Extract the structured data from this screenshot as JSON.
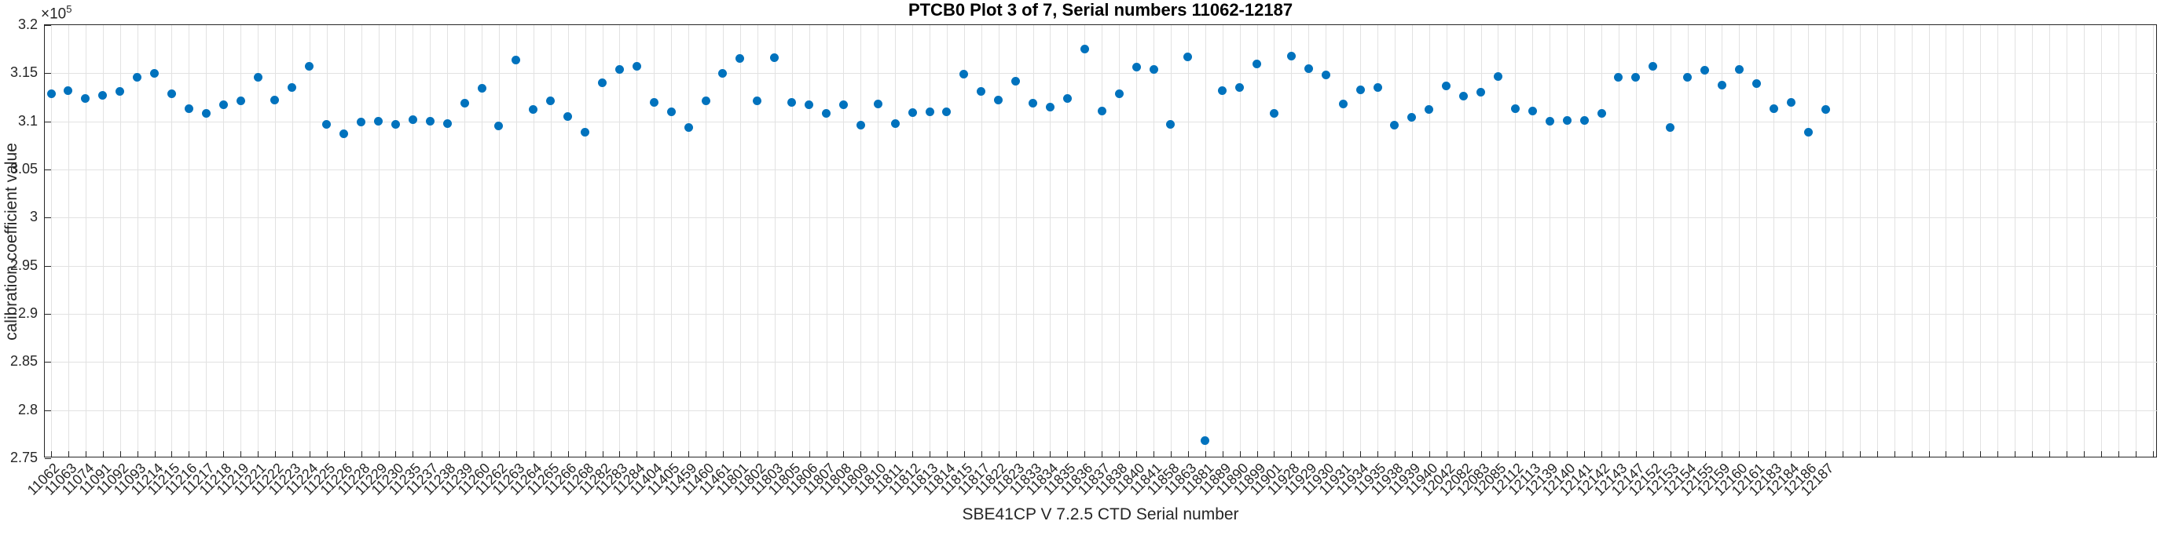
{
  "figure": {
    "title": "PTCB0 Plot 3 of 7, Serial numbers 11062-12187",
    "scale_base": "×10",
    "scale_exponent": "5"
  },
  "chart_data": {
    "type": "scatter",
    "title": "PTCB0 Plot 3 of 7, Serial numbers 11062-12187",
    "xlabel": "SBE41CP V 7.2.5 CTD Serial number",
    "ylabel": "calibration coefficient value",
    "y_unit_multiplier_label": "×10^5",
    "ylim": [
      2.75,
      3.2
    ],
    "ytick_labels": [
      "3.2",
      "3.15",
      "3.1",
      "3.05",
      "3",
      "2.95",
      "2.9",
      "2.85",
      "2.8",
      "2.75"
    ],
    "ytick_values": [
      3.2,
      3.15,
      3.1,
      3.05,
      3.0,
      2.95,
      2.9,
      2.85,
      2.8,
      2.75
    ],
    "grid": true,
    "x_gridlines_extend_beyond_data": true,
    "marker_color": "#0072BD",
    "legend": "none",
    "categories": [
      "11062",
      "11063",
      "11074",
      "11091",
      "11092",
      "11093",
      "11214",
      "11215",
      "11216",
      "11217",
      "11218",
      "11219",
      "11221",
      "11222",
      "11223",
      "11224",
      "11225",
      "11226",
      "11228",
      "11229",
      "11230",
      "11235",
      "11237",
      "11238",
      "11239",
      "11260",
      "11262",
      "11263",
      "11264",
      "11265",
      "11266",
      "11268",
      "11282",
      "11283",
      "11284",
      "11404",
      "11405",
      "11459",
      "11460",
      "11461",
      "11801",
      "11802",
      "11803",
      "11805",
      "11806",
      "11807",
      "11808",
      "11809",
      "11810",
      "11811",
      "11812",
      "11813",
      "11814",
      "11815",
      "11817",
      "11822",
      "11823",
      "11833",
      "11834",
      "11835",
      "11836",
      "11837",
      "11838",
      "11840",
      "11841",
      "11858",
      "11863",
      "11881",
      "11889",
      "11890",
      "11899",
      "11901",
      "11928",
      "11929",
      "11930",
      "11931",
      "11934",
      "11935",
      "11938",
      "11939",
      "11940",
      "12042",
      "12082",
      "12083",
      "12085",
      "12112",
      "12113",
      "12139",
      "12140",
      "12141",
      "12142",
      "12143",
      "12147",
      "12152",
      "12153",
      "12154",
      "12155",
      "12159",
      "12160",
      "12161",
      "12183",
      "12184",
      "12186",
      "12187"
    ],
    "values": [
      3.129,
      3.132,
      3.124,
      3.127,
      3.131,
      3.146,
      3.15,
      3.129,
      3.113,
      3.108,
      3.117,
      3.121,
      3.146,
      3.122,
      3.135,
      3.157,
      3.097,
      3.087,
      3.099,
      3.1,
      3.097,
      3.102,
      3.1,
      3.098,
      3.119,
      3.134,
      3.095,
      3.164,
      3.112,
      3.121,
      3.105,
      3.089,
      3.14,
      3.154,
      3.157,
      3.12,
      3.11,
      3.094,
      3.121,
      3.15,
      3.165,
      3.121,
      3.166,
      3.12,
      3.117,
      3.108,
      3.117,
      3.096,
      3.118,
      3.098,
      3.109,
      3.11,
      3.11,
      3.149,
      3.131,
      3.122,
      3.142,
      3.119,
      3.115,
      3.124,
      3.175,
      3.111,
      3.129,
      3.156,
      3.154,
      3.097,
      3.167,
      2.768,
      3.132,
      3.135,
      3.16,
      3.108,
      3.168,
      3.155,
      3.148,
      3.118,
      3.133,
      3.135,
      3.096,
      3.104,
      3.112,
      3.137,
      3.126,
      3.13,
      3.147,
      3.113,
      3.111,
      3.1,
      3.101,
      3.101,
      3.108,
      3.146,
      3.146,
      3.157,
      3.094,
      3.146,
      3.153,
      3.138,
      3.154,
      3.139,
      3.113,
      3.12,
      3.089,
      3.112
    ]
  }
}
